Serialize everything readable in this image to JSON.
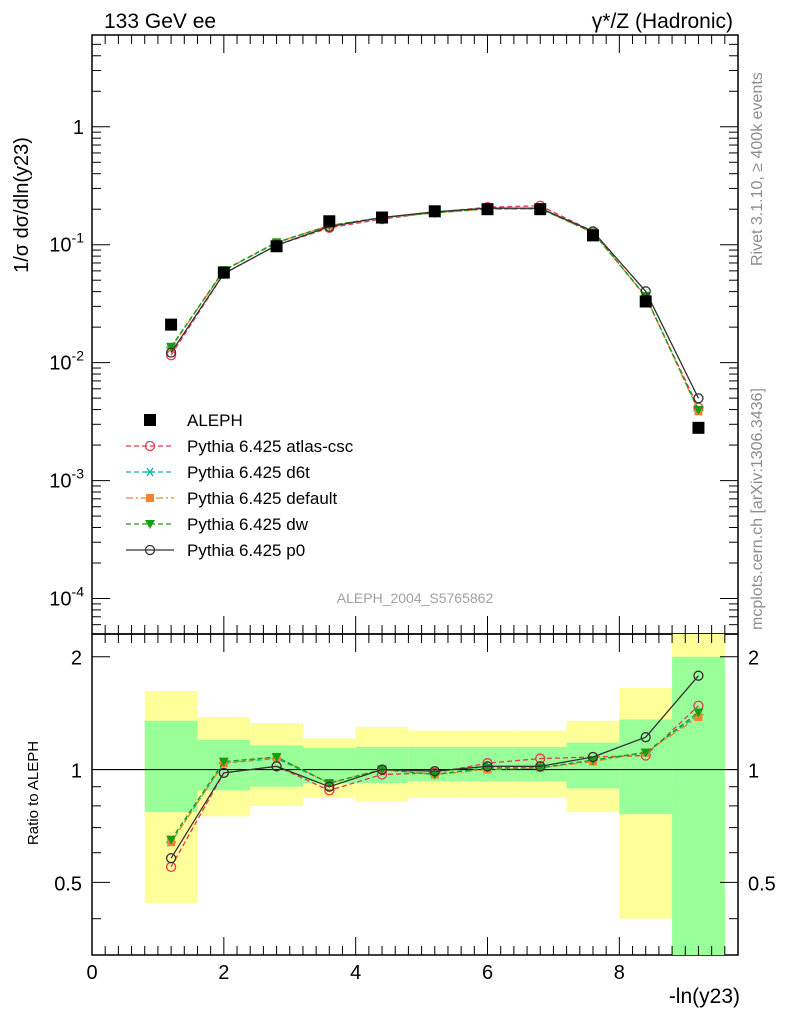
{
  "header": {
    "left_title": "133 GeV ee",
    "right_title": "γ*/Z (Hadronic)"
  },
  "side_labels": {
    "version": "Rivet 3.1.10, ≥ 400k events",
    "source": "mcplots.cern.ch [arXiv:1306.3436]"
  },
  "analysis_id": "ALEPH_2004_S5765862",
  "axes": {
    "ylabel_main": "1/σ dσ/dln(y23)",
    "ylabel_ratio": "Ratio to ALEPH",
    "xlabel": "-ln(y23)",
    "main_y_ticks": [
      {
        "base": "10",
        "exp": "-4"
      },
      {
        "base": "10",
        "exp": "-3"
      },
      {
        "base": "10",
        "exp": "-2"
      },
      {
        "base": "10",
        "exp": "-1"
      },
      {
        "base": "1",
        "exp": ""
      }
    ],
    "ratio_y_ticks": [
      "0.5",
      "1",
      "2"
    ],
    "x_ticks": [
      "0",
      "2",
      "4",
      "6",
      "8"
    ]
  },
  "chart_data": {
    "type": "line",
    "title": "",
    "xlabel": "-ln(y23)",
    "ylabel": "1/σ dσ/dln(y23)",
    "xlim": [
      0,
      9.8
    ],
    "ylim": [
      5e-05,
      6
    ],
    "yscale": "log",
    "ratio_ylim": [
      0.32,
      2.3
    ],
    "x_edges": [
      0.8,
      1.6,
      2.4,
      3.2,
      4.0,
      4.8,
      5.6,
      6.4,
      7.2,
      8.0,
      8.8,
      9.6
    ],
    "x": [
      1.2,
      2.0,
      2.8,
      3.6,
      4.4,
      5.2,
      6.0,
      6.8,
      7.6,
      8.4,
      9.2
    ],
    "data": {
      "name": "ALEPH",
      "values": [
        0.021,
        0.058,
        0.097,
        0.158,
        0.17,
        0.192,
        0.2,
        0.2,
        0.12,
        0.033,
        0.0028
      ]
    },
    "band_yellow": [
      [
        0.44,
        1.62
      ],
      [
        0.75,
        1.38
      ],
      [
        0.8,
        1.33
      ],
      [
        0.84,
        1.21
      ],
      [
        0.82,
        1.3
      ],
      [
        0.84,
        1.27
      ],
      [
        0.84,
        1.27
      ],
      [
        0.84,
        1.27
      ],
      [
        0.77,
        1.35
      ],
      [
        0.4,
        1.65
      ],
      [
        0.32,
        2.3
      ]
    ],
    "band_green": [
      [
        0.77,
        1.35
      ],
      [
        0.88,
        1.2
      ],
      [
        0.9,
        1.16
      ],
      [
        0.92,
        1.14
      ],
      [
        0.92,
        1.15
      ],
      [
        0.93,
        1.15
      ],
      [
        0.93,
        1.15
      ],
      [
        0.93,
        1.15
      ],
      [
        0.89,
        1.18
      ],
      [
        0.76,
        1.36
      ],
      [
        0.32,
        2.0
      ]
    ],
    "series": [
      {
        "name": "Pythia 6.425 atlas-csc",
        "color": "#e8374f",
        "marker": "open-circle",
        "dash": "dashed",
        "ratio": [
          0.55,
          0.98,
          1.02,
          0.88,
          0.97,
          0.98,
          1.04,
          1.07,
          1.08,
          1.09,
          1.48
        ]
      },
      {
        "name": "Pythia 6.425 d6t",
        "color": "#15b7a6",
        "marker": "asterisk",
        "dash": "dashed",
        "ratio": [
          0.64,
          1.04,
          1.07,
          0.92,
          1.0,
          0.97,
          1.01,
          1.01,
          1.06,
          1.11,
          1.4
        ]
      },
      {
        "name": "Pythia 6.425 default",
        "color": "#f7812e",
        "marker": "filled-square",
        "dash": "dashdot",
        "ratio": [
          0.64,
          1.04,
          1.08,
          0.92,
          1.0,
          0.97,
          1.0,
          1.01,
          1.05,
          1.11,
          1.38
        ]
      },
      {
        "name": "Pythia 6.425 dw",
        "color": "#14a014",
        "marker": "filled-triangle-down",
        "dash": "dashed",
        "ratio": [
          0.65,
          1.05,
          1.08,
          0.92,
          1.0,
          0.97,
          1.01,
          1.01,
          1.06,
          1.11,
          1.42
        ]
      },
      {
        "name": "Pythia 6.425 p0",
        "color": "#333333",
        "marker": "open-circle",
        "dash": "solid",
        "ratio": [
          0.58,
          0.98,
          1.02,
          0.9,
          1.0,
          0.99,
          1.02,
          1.02,
          1.08,
          1.22,
          1.78
        ]
      }
    ]
  }
}
